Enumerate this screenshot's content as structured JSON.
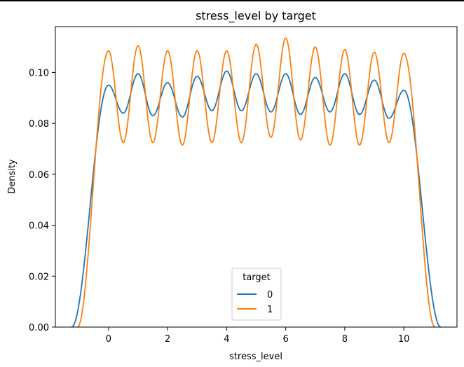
{
  "chart_data": {
    "type": "line",
    "title": "stress_level by target",
    "xlabel": "stress_level",
    "ylabel": "Density",
    "xlim": [
      -1.8,
      11.8
    ],
    "ylim": [
      0.0,
      0.118
    ],
    "xticks": [
      0,
      2,
      4,
      6,
      8,
      10
    ],
    "yticks": [
      0.0,
      0.02,
      0.04,
      0.06,
      0.08,
      0.1
    ],
    "xtick_labels": [
      "0",
      "2",
      "4",
      "6",
      "8",
      "10"
    ],
    "ytick_labels": [
      "0.00",
      "0.02",
      "0.04",
      "0.06",
      "0.08",
      "0.10"
    ],
    "grid": false,
    "legend": {
      "title": "target",
      "placement": "lower-center"
    },
    "series": [
      {
        "name": "0",
        "color": "#1f77b4",
        "support": [
          -1.25,
          11.25
        ],
        "peaks": [
          {
            "x": 0,
            "y": 0.095
          },
          {
            "x": 1,
            "y": 0.0995
          },
          {
            "x": 2,
            "y": 0.096
          },
          {
            "x": 3,
            "y": 0.0985
          },
          {
            "x": 4,
            "y": 0.1005
          },
          {
            "x": 5,
            "y": 0.0995
          },
          {
            "x": 6,
            "y": 0.0995
          },
          {
            "x": 7,
            "y": 0.098
          },
          {
            "x": 8,
            "y": 0.0995
          },
          {
            "x": 9,
            "y": 0.097
          },
          {
            "x": 10,
            "y": 0.093
          }
        ],
        "troughs": [
          {
            "x": 0.5,
            "y": 0.084
          },
          {
            "x": 1.5,
            "y": 0.083
          },
          {
            "x": 2.5,
            "y": 0.0825
          },
          {
            "x": 3.5,
            "y": 0.085
          },
          {
            "x": 4.5,
            "y": 0.085
          },
          {
            "x": 5.5,
            "y": 0.0845
          },
          {
            "x": 6.5,
            "y": 0.0835
          },
          {
            "x": 7.5,
            "y": 0.0845
          },
          {
            "x": 8.5,
            "y": 0.0835
          },
          {
            "x": 9.5,
            "y": 0.082
          }
        ]
      },
      {
        "name": "1",
        "color": "#ff7f0e",
        "support": [
          -1.05,
          11.05
        ],
        "peaks": [
          {
            "x": 0,
            "y": 0.1085
          },
          {
            "x": 1,
            "y": 0.1105
          },
          {
            "x": 2,
            "y": 0.1085
          },
          {
            "x": 3,
            "y": 0.1085
          },
          {
            "x": 4,
            "y": 0.1085
          },
          {
            "x": 5,
            "y": 0.111
          },
          {
            "x": 6,
            "y": 0.1135
          },
          {
            "x": 7,
            "y": 0.11
          },
          {
            "x": 8,
            "y": 0.109
          },
          {
            "x": 9,
            "y": 0.108
          },
          {
            "x": 10,
            "y": 0.1075
          }
        ],
        "troughs": [
          {
            "x": 0.5,
            "y": 0.0725
          },
          {
            "x": 1.5,
            "y": 0.0725
          },
          {
            "x": 2.5,
            "y": 0.0715
          },
          {
            "x": 3.5,
            "y": 0.0725
          },
          {
            "x": 4.5,
            "y": 0.0725
          },
          {
            "x": 5.5,
            "y": 0.0745
          },
          {
            "x": 6.5,
            "y": 0.0735
          },
          {
            "x": 7.5,
            "y": 0.0715
          },
          {
            "x": 8.5,
            "y": 0.0715
          },
          {
            "x": 9.5,
            "y": 0.0725
          }
        ]
      }
    ]
  }
}
